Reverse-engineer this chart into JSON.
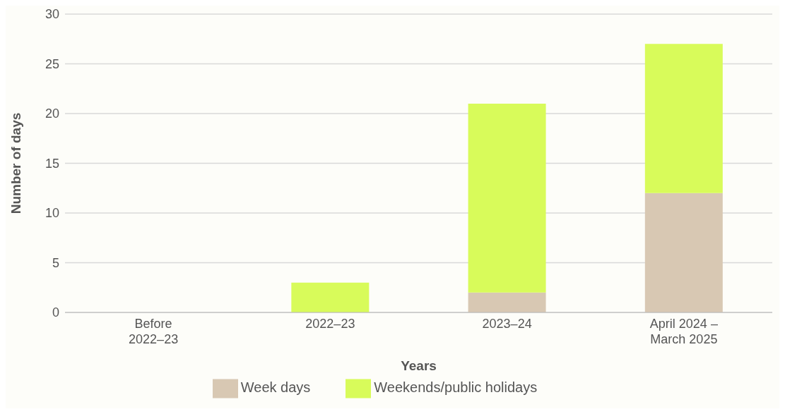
{
  "chart_data": {
    "type": "bar",
    "stacked": true,
    "xlabel": "Years",
    "ylabel": "Number of days",
    "categories": [
      "Before 2022–23",
      "2022–23",
      "2023–24",
      "April 2024 – March 2025"
    ],
    "series": [
      {
        "name": "Week days",
        "color": "#d8c8b3",
        "values": [
          0,
          0,
          2,
          12
        ]
      },
      {
        "name": "Weekends/public holidays",
        "color": "#d8fb5a",
        "values": [
          0,
          3,
          19,
          15
        ]
      }
    ],
    "ylim": [
      0,
      30
    ],
    "yticks": [
      0,
      5,
      10,
      15,
      20,
      25,
      30
    ],
    "grid": "y",
    "legend": "bottom"
  }
}
